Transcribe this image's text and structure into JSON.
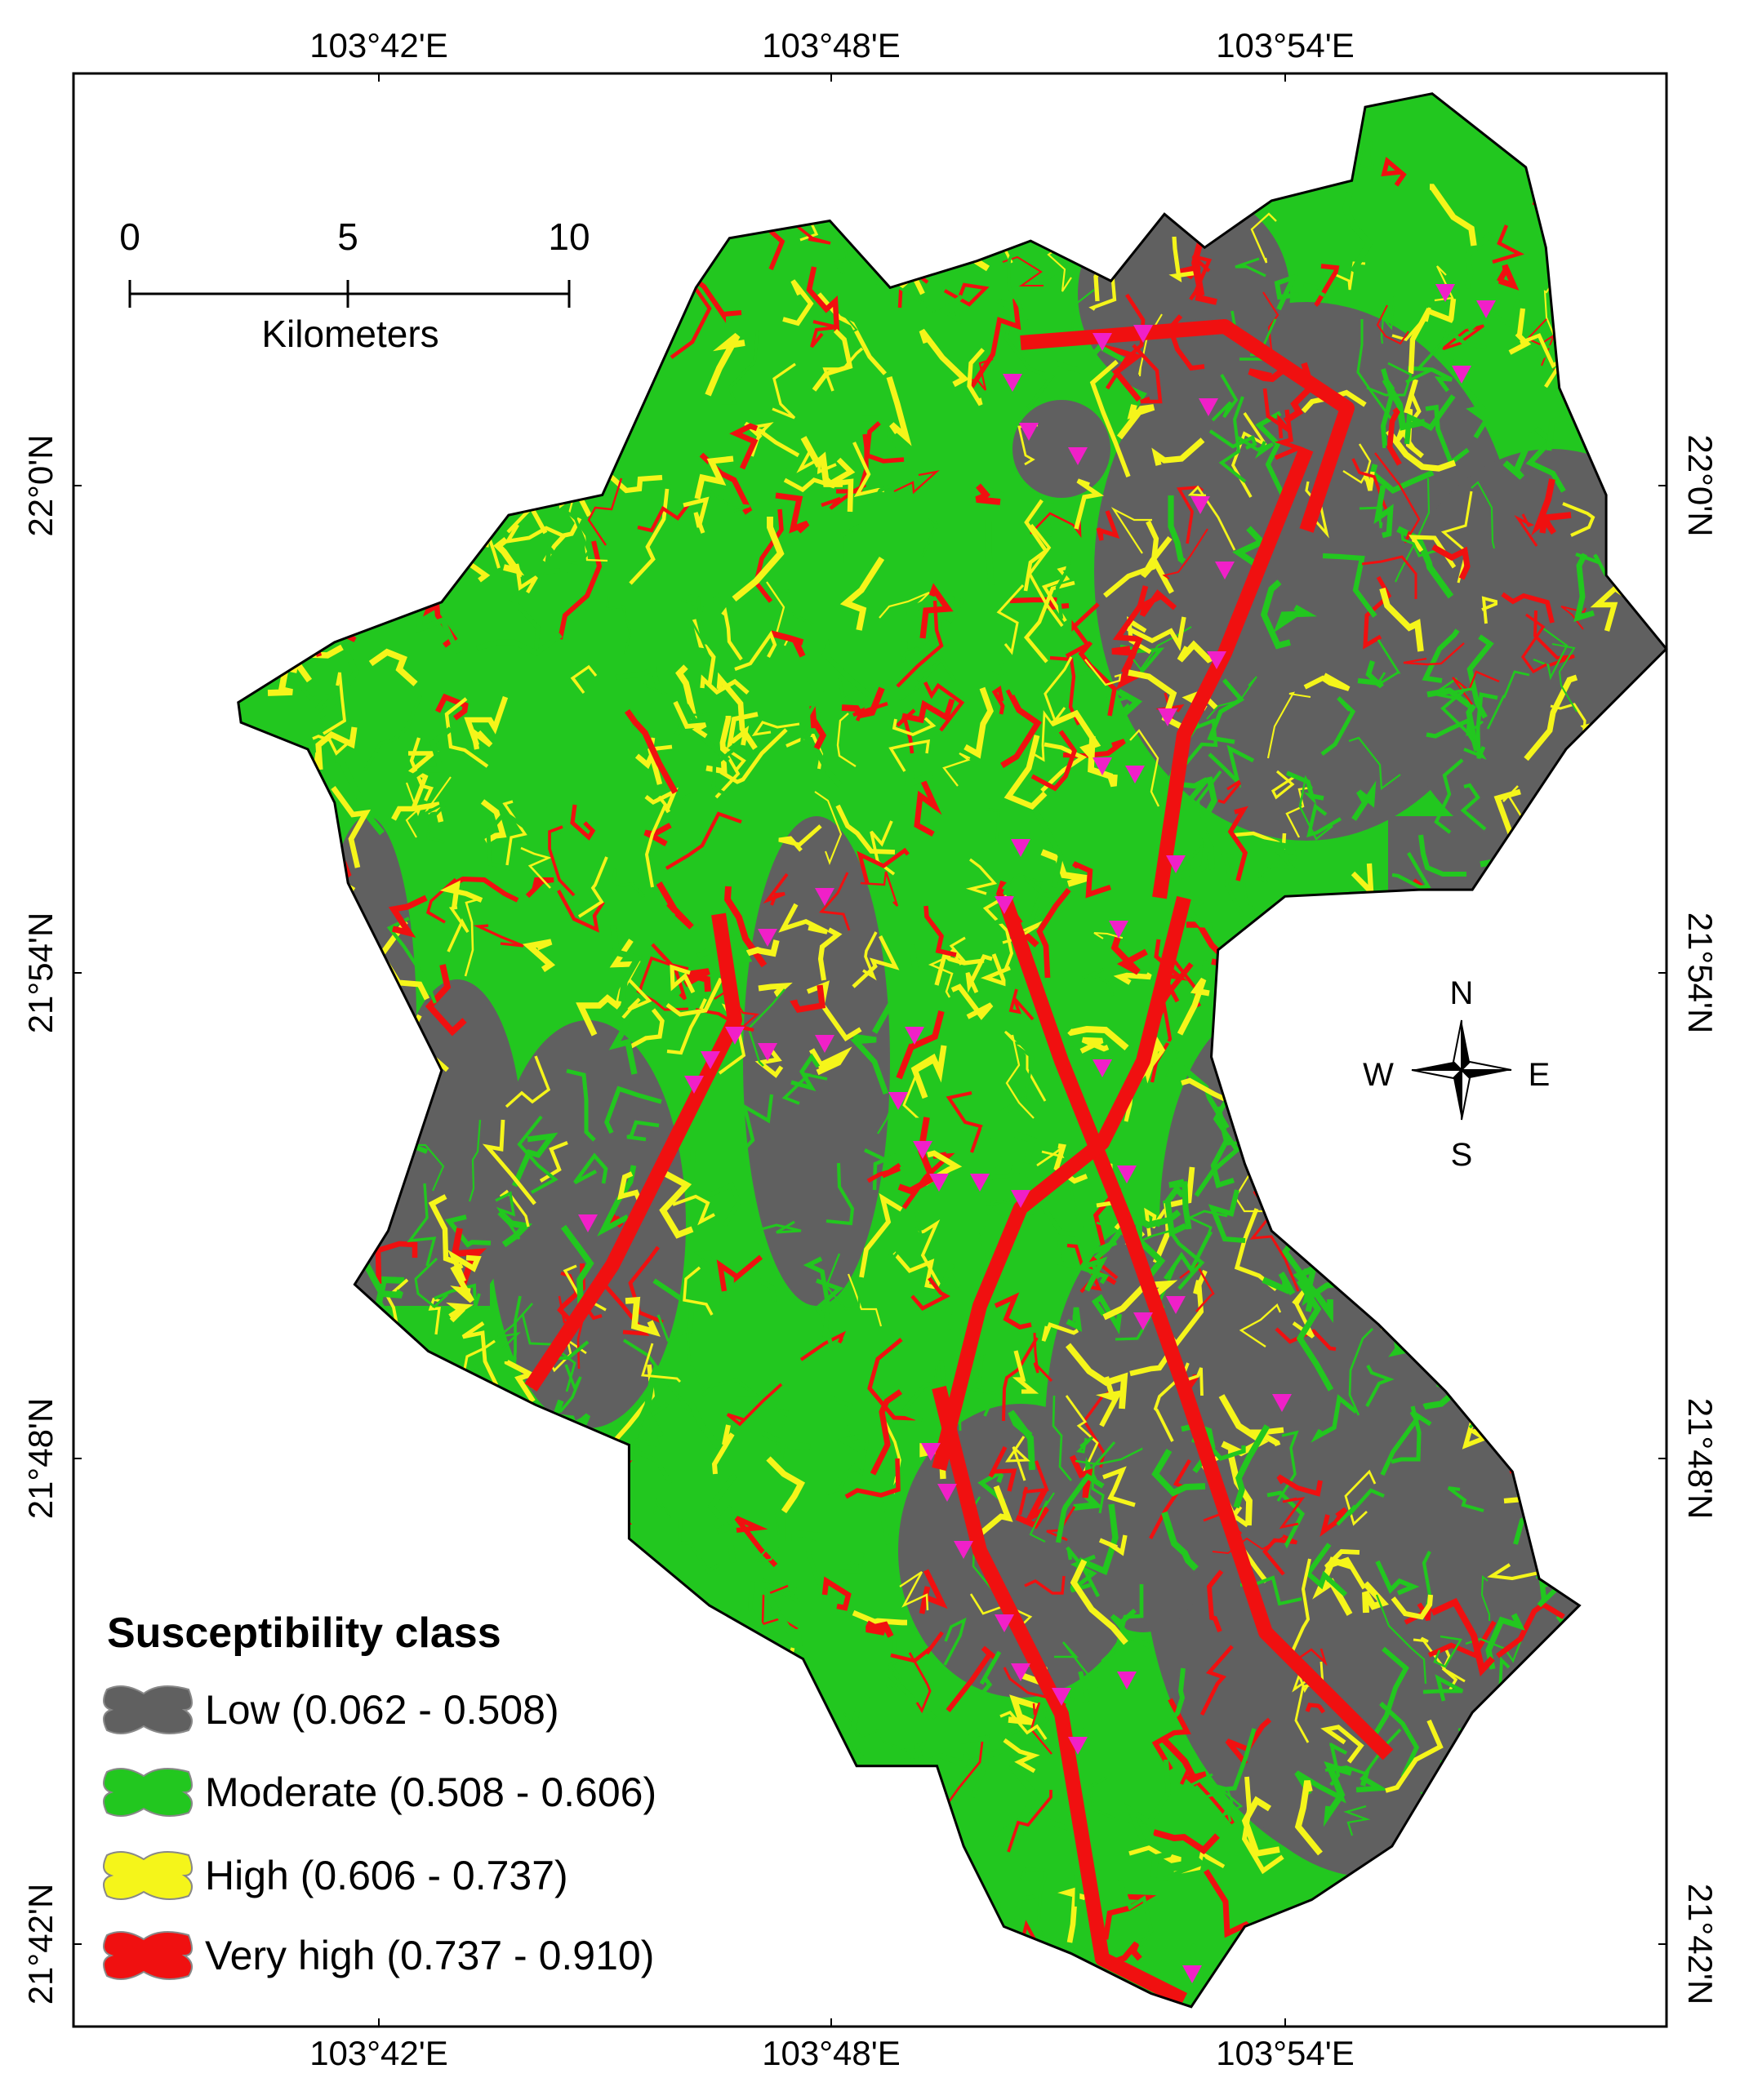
{
  "axes": {
    "top_labels": [
      "103°42'E",
      "103°48'E",
      "103°54'E"
    ],
    "bottom_labels": [
      "103°42'E",
      "103°48'E",
      "103°54'E"
    ],
    "left_labels": [
      "22°0'N",
      "21°54'N",
      "21°48'N",
      "21°42'N"
    ],
    "right_labels": [
      "22°0'N",
      "21°54'N",
      "21°48'N",
      "21°42'N"
    ]
  },
  "scale_bar": {
    "ticks": [
      "0",
      "5",
      "10"
    ],
    "unit": "Kilometers"
  },
  "compass": {
    "n": "N",
    "s": "S",
    "w": "W",
    "e": "E"
  },
  "legend": {
    "title": "Susceptibility class",
    "items": [
      {
        "label": "Low (0.062 - 0.508)",
        "color": "#606060"
      },
      {
        "label": "Moderate (0.508 - 0.606)",
        "color": "#22c71f"
      },
      {
        "label": "High (0.606 - 0.737)",
        "color": "#f5f51a"
      },
      {
        "label": "Very high (0.737 - 0.910)",
        "color": "#f01010"
      }
    ]
  }
}
